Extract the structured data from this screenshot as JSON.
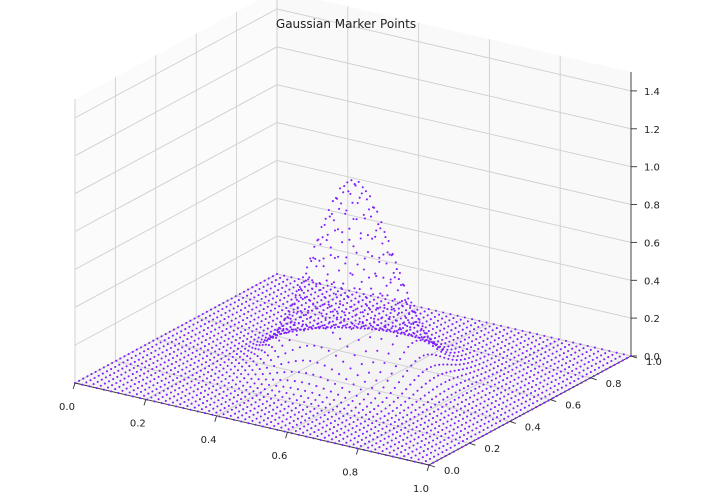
{
  "chart_data": {
    "type": "scatter3d",
    "title": "Gaussian Marker Points",
    "xlabel": "",
    "ylabel": "",
    "zlabel": "",
    "xlim": [
      0.0,
      1.0
    ],
    "ylim": [
      0.0,
      1.0
    ],
    "zlim": [
      0.0,
      1.5
    ],
    "x_ticks": [
      "0.0",
      "0.2",
      "0.4",
      "0.6",
      "0.8",
      "1.0"
    ],
    "y_ticks": [
      "0.0",
      "0.2",
      "0.4",
      "0.6",
      "0.8",
      "1.0"
    ],
    "z_ticks": [
      "0.0",
      "0.2",
      "0.4",
      "0.6",
      "0.8",
      "1.0",
      "1.2",
      "1.4"
    ],
    "grid": true,
    "marker_color": "#7f1fff",
    "surface": {
      "function": "gaussian",
      "amplitude": 1.0,
      "center_x": 0.5,
      "center_y": 0.5,
      "sigma": 0.1,
      "grid_points_per_axis": 50
    }
  }
}
